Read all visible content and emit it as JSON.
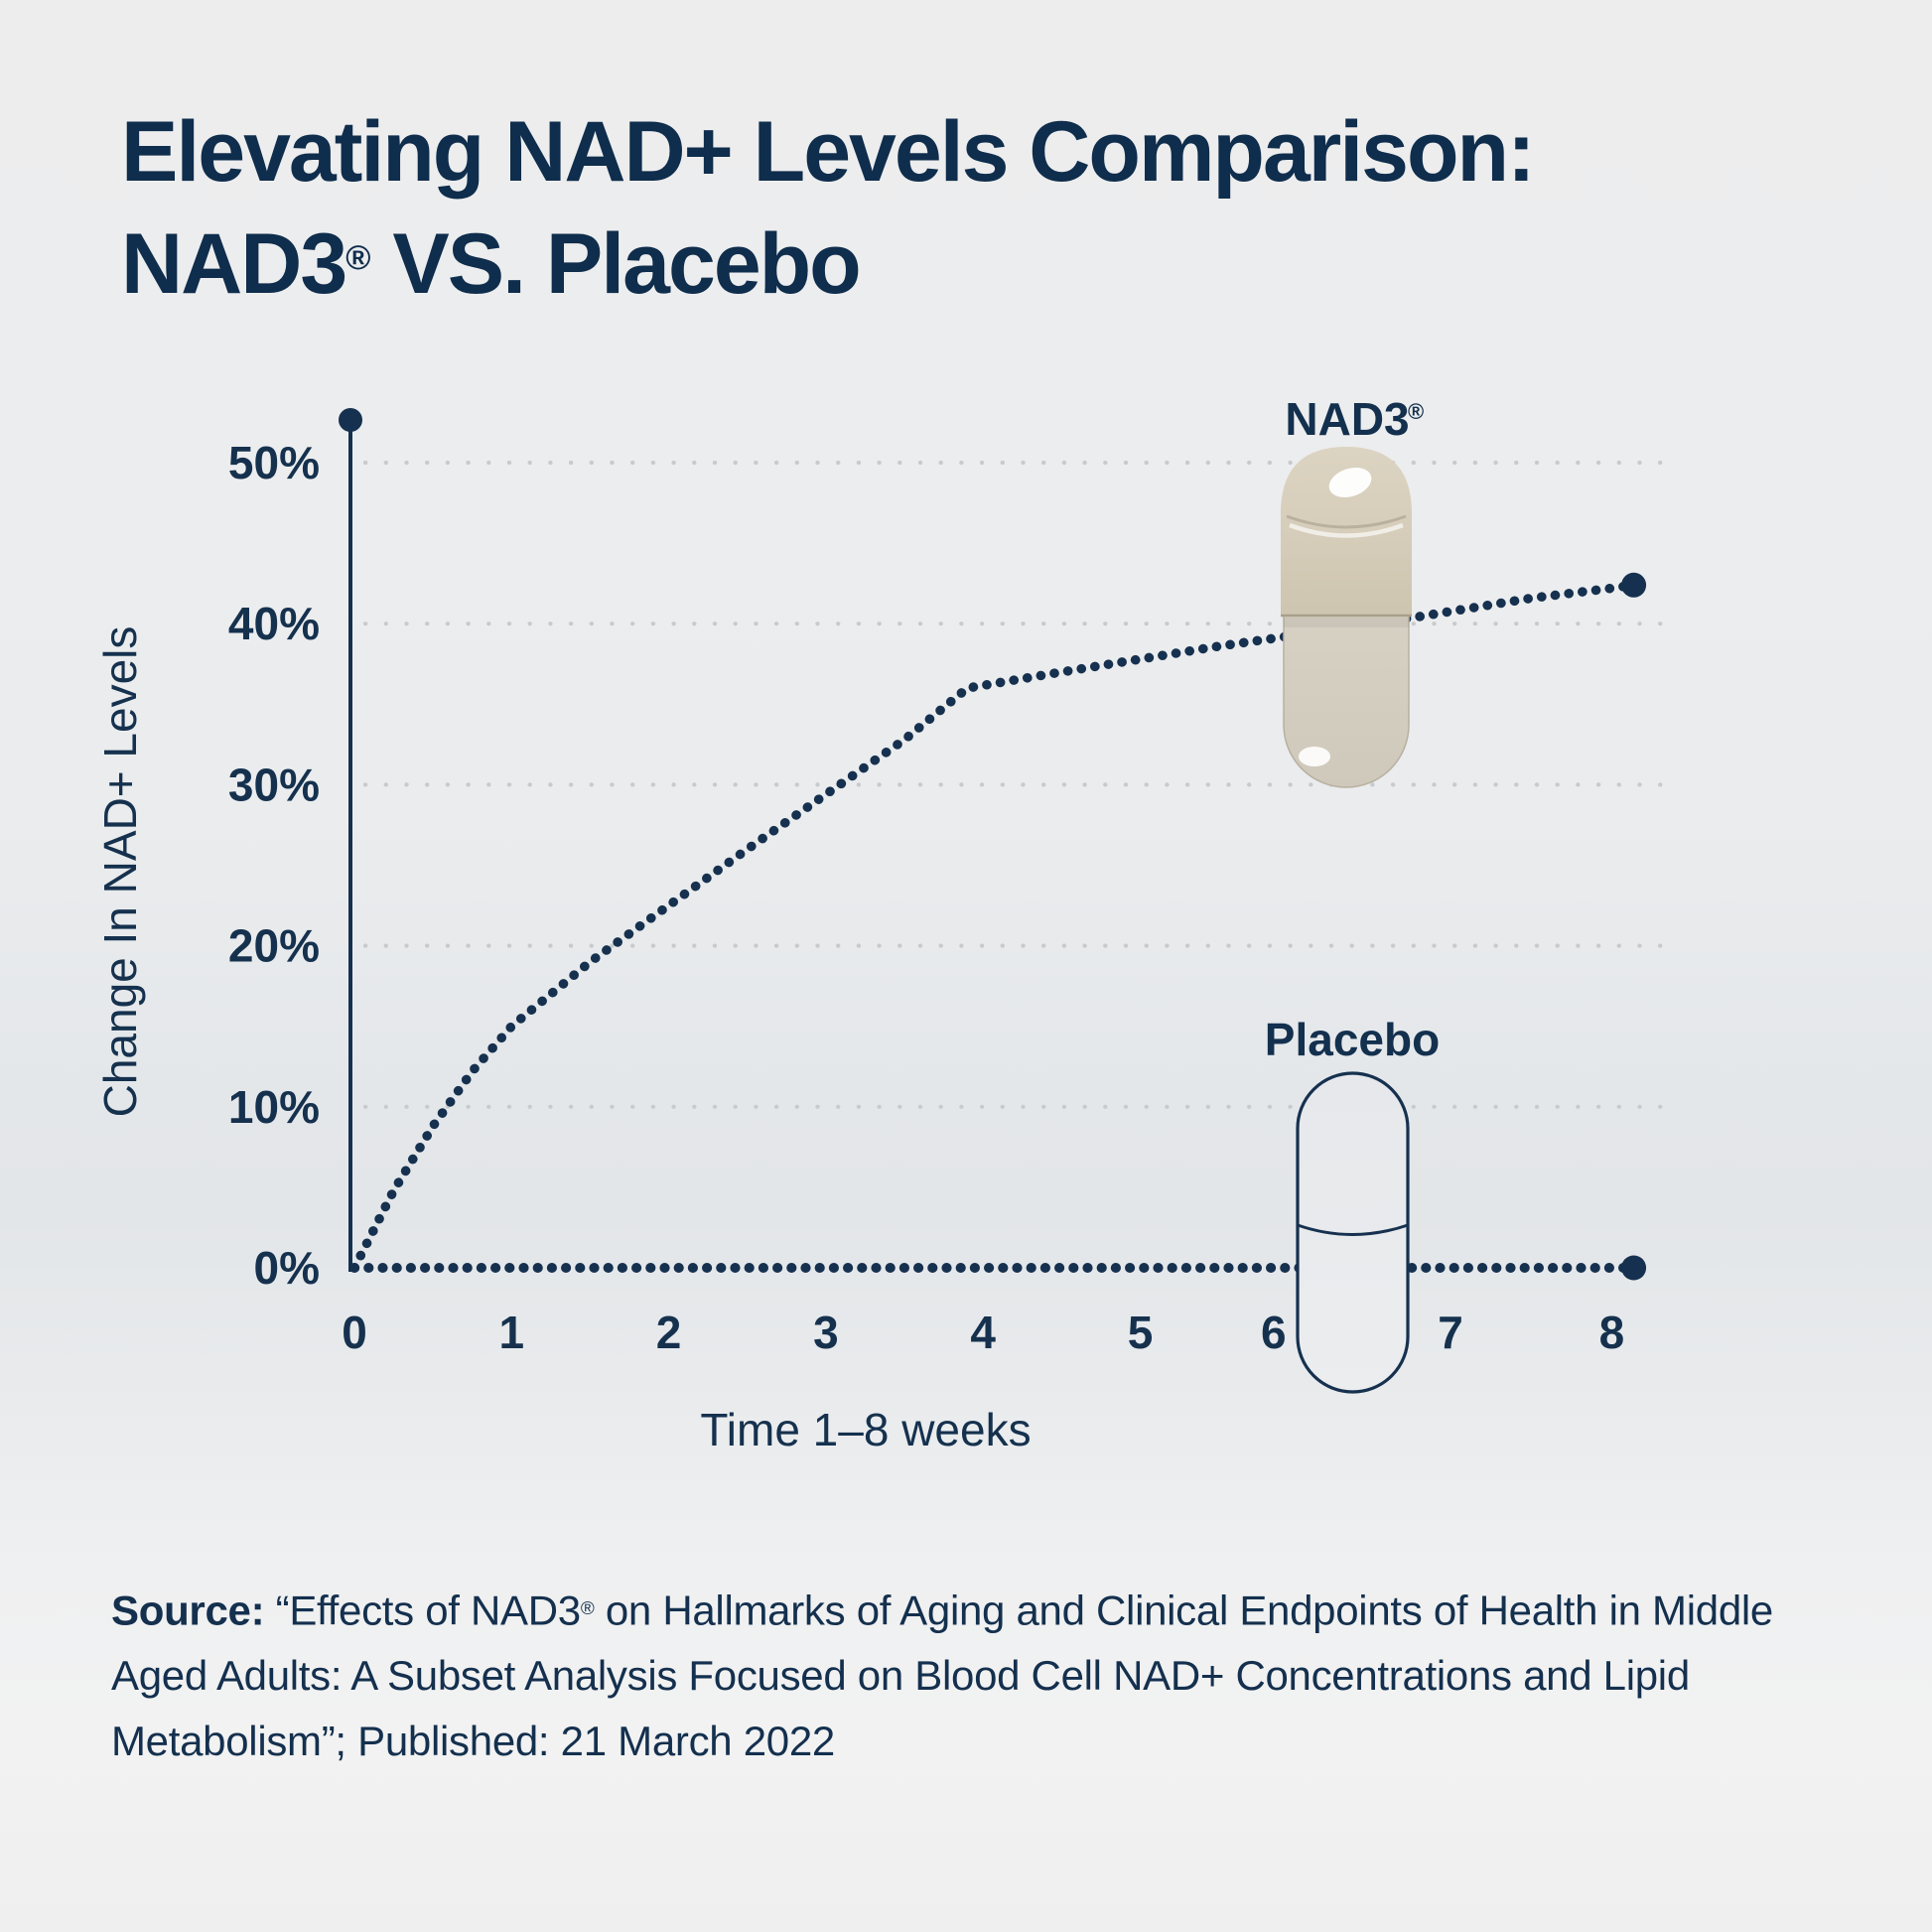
{
  "title": {
    "line1": "Elevating NAD+ Levels Comparison:",
    "line2_brand": "NAD3",
    "line2_reg": "®",
    "line2_rest": " VS. Placebo"
  },
  "chart_data": {
    "type": "line",
    "title": "Elevating NAD+ Levels Comparison: NAD3® VS. Placebo",
    "xlabel": "Time 1–8 weeks",
    "ylabel": "Change In NAD+ Levels",
    "x_ticks": [
      "0",
      "1",
      "2",
      "3",
      "4",
      "5",
      "6",
      "7",
      "8"
    ],
    "x_tick_values": [
      0,
      1,
      2,
      3,
      4,
      5,
      6,
      7,
      8
    ],
    "x_tick_dx": [
      0,
      0,
      0,
      0,
      0,
      0,
      -24,
      -4,
      0
    ],
    "y_ticks": [
      {
        "label": "0%",
        "value": 0
      },
      {
        "label": "10%",
        "value": 10
      },
      {
        "label": "20%",
        "value": 20
      },
      {
        "label": "30%",
        "value": 30
      },
      {
        "label": "40%",
        "value": 40
      },
      {
        "label": "50%",
        "value": 50
      }
    ],
    "xlim": [
      0,
      8.4
    ],
    "ylim": [
      0,
      52.5
    ],
    "grid": "horizontal dotted gridlines at every 10%",
    "legend_position": "capsule illustrations beside each line",
    "series": [
      {
        "name": "NAD3®",
        "label": "NAD3",
        "label_reg": "®",
        "style": "dotted",
        "color": "#16314F",
        "stroke_width": 9.5,
        "dot_gap": 13.6,
        "end_dot": true,
        "points": [
          [
            0,
            0
          ],
          [
            0.25,
            4.8
          ],
          [
            0.5,
            8.8
          ],
          [
            0.75,
            12.2
          ],
          [
            1,
            15
          ],
          [
            1.5,
            19
          ],
          [
            2,
            22.5
          ],
          [
            2.5,
            26
          ],
          [
            3,
            29.4
          ],
          [
            3.5,
            32.8
          ],
          [
            3.9,
            36
          ],
          [
            4.5,
            37
          ],
          [
            5,
            37.8
          ],
          [
            5.5,
            38.6
          ],
          [
            6,
            39.3
          ],
          [
            6.5,
            40
          ],
          [
            7,
            40.8
          ],
          [
            7.5,
            41.6
          ],
          [
            8,
            42.2
          ],
          [
            8.14,
            42.4
          ]
        ]
      },
      {
        "name": "Placebo",
        "label": "Placebo",
        "style": "dotted",
        "color": "#16314F",
        "stroke_width": 10,
        "dot_gap": 14,
        "end_dot": true,
        "points": [
          [
            0,
            0
          ],
          [
            8.14,
            0
          ]
        ]
      }
    ]
  },
  "source": {
    "label": "Source:",
    "line1_pre": " “Effects of NAD3",
    "line1_reg": "®",
    "line1_post": " on Hallmarks of Aging and Clinical Endpoints of Health in Middle",
    "line2": "Aged Adults: A Subset Analysis Focused on Blood Cell NAD+ Concentrations and Lipid",
    "line3": "Metabolism”; Published: 21 March 2022"
  },
  "colors": {
    "navy": "#16314F",
    "title_navy": "#0F2D4C",
    "gridline": "#C8CACD",
    "background_top": "#EDEDEE",
    "background_band": "#E3E6E9",
    "background_bottom": "#EFEFEF",
    "capsule_beige": "#D6CEBC"
  }
}
